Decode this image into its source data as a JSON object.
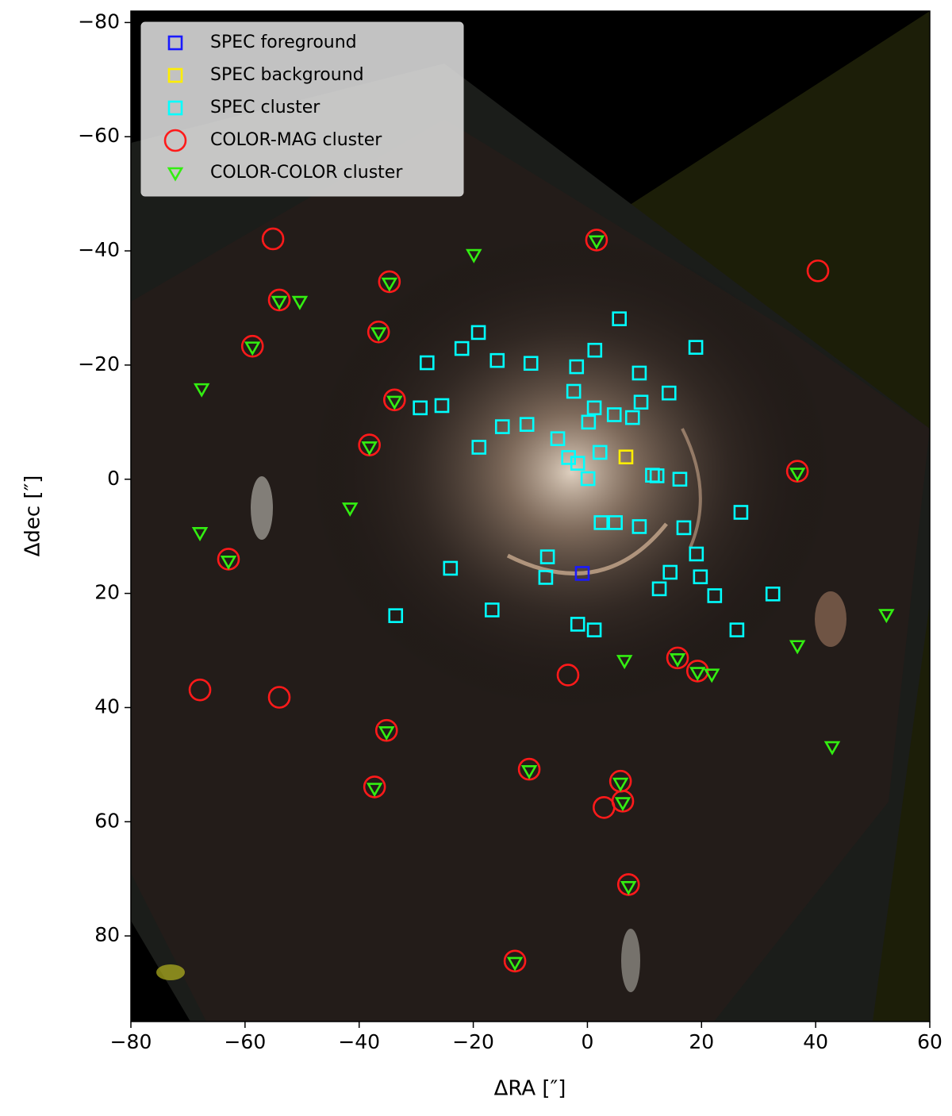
{
  "chart_data": {
    "type": "scatter",
    "x_label": "ΔRA [″]",
    "y_label": "Δdec [″]",
    "xlim": [
      -80,
      60
    ],
    "ylim": [
      -82,
      95
    ],
    "y_inverted": true,
    "xticks": [
      {
        "value": -80,
        "label": "−80"
      },
      {
        "value": -60,
        "label": "−60"
      },
      {
        "value": -40,
        "label": "−40"
      },
      {
        "value": -20,
        "label": "−20"
      },
      0,
      20,
      40,
      60
    ],
    "yticks": [
      {
        "value": -80,
        "label": "−80"
      },
      {
        "value": -60,
        "label": "−60"
      },
      {
        "value": -40,
        "label": "−40"
      },
      {
        "value": -20,
        "label": "−20"
      },
      0,
      20,
      40,
      60,
      80
    ],
    "legend": "upper left",
    "series": [
      {
        "name": "SPEC foreground",
        "color": "#1a1aff",
        "marker": "square",
        "x": [
          -0.9
        ],
        "y": [
          16.5
        ]
      },
      {
        "name": "SPEC background",
        "color": "#ffee00",
        "marker": "square",
        "x": [
          6.75
        ],
        "y": [
          -3.9
        ]
      },
      {
        "name": "SPEC cluster",
        "color": "#00ffff",
        "marker": "square",
        "x": [
          5.6,
          19.0,
          -19.1,
          -22.0,
          1.3,
          -28.1,
          -15.8,
          -9.9,
          -1.9,
          9.1,
          14.3,
          -2.4,
          9.4,
          -29.3,
          -25.5,
          1.2,
          4.7,
          7.9,
          -14.9,
          -10.6,
          0.2,
          -5.2,
          -19.0,
          2.2,
          -3.3,
          -1.7,
          0.1,
          11.4,
          12.2,
          16.2,
          26.9,
          2.4,
          4.9,
          9.1,
          16.9,
          19.1,
          -7.0,
          -7.3,
          -24.0,
          14.5,
          19.8,
          12.6,
          22.3,
          32.5,
          -16.7,
          -33.6,
          -1.7,
          1.2,
          26.2
        ],
        "y": [
          -28.1,
          -23.1,
          -25.7,
          -22.9,
          -22.6,
          -20.4,
          -20.8,
          -20.3,
          -19.7,
          -18.6,
          -15.1,
          -15.4,
          -13.5,
          -12.5,
          -12.9,
          -12.5,
          -11.3,
          -10.8,
          -9.2,
          -9.6,
          -10.0,
          -7.1,
          -5.6,
          -4.7,
          -3.8,
          -2.8,
          -0.1,
          -0.7,
          -0.6,
          0.0,
          5.8,
          7.6,
          7.6,
          8.3,
          8.5,
          13.1,
          13.6,
          17.2,
          15.6,
          16.3,
          17.1,
          19.2,
          20.4,
          20.1,
          22.9,
          23.9,
          25.4,
          26.4,
          26.4
        ]
      },
      {
        "name": "COLOR-MAG cluster",
        "color": "#ff1a1a",
        "marker": "circle",
        "x": [
          -55.1,
          1.6,
          40.4,
          -34.7,
          -54.0,
          -36.6,
          -58.7,
          -33.8,
          -38.2,
          36.8,
          -62.9,
          -67.9,
          -54.0,
          -3.4,
          15.8,
          19.3,
          -35.2,
          -10.2,
          -37.3,
          5.8,
          2.9,
          6.2,
          7.2,
          -12.7
        ],
        "y": [
          -42.1,
          -41.9,
          -36.5,
          -34.6,
          -31.4,
          -25.8,
          -23.3,
          -13.9,
          -6.0,
          -1.4,
          14.0,
          36.9,
          38.2,
          34.3,
          31.3,
          33.6,
          44.0,
          50.8,
          53.9,
          52.9,
          57.5,
          56.4,
          71.0,
          84.4
        ]
      },
      {
        "name": "COLOR-COLOR cluster",
        "color": "#33ee11",
        "marker": "triangle_down",
        "x": [
          1.6,
          -19.9,
          -34.7,
          -54.0,
          -50.4,
          -36.6,
          -58.7,
          -67.6,
          -33.8,
          -38.2,
          36.8,
          -41.6,
          -67.9,
          -62.9,
          52.4,
          36.8,
          6.5,
          15.8,
          19.3,
          21.8,
          -35.2,
          42.9,
          -10.2,
          -37.3,
          5.8,
          6.2,
          7.2,
          -12.7
        ],
        "y": [
          -41.7,
          -39.3,
          -34.3,
          -31.1,
          -31.1,
          -25.6,
          -23.1,
          -15.8,
          -13.6,
          -5.6,
          -1.0,
          5.1,
          9.4,
          14.4,
          23.75,
          29.2,
          31.8,
          31.5,
          33.9,
          34.2,
          44.3,
          46.9,
          51.1,
          54.2,
          53.3,
          56.7,
          71.4,
          84.7
        ]
      }
    ]
  }
}
